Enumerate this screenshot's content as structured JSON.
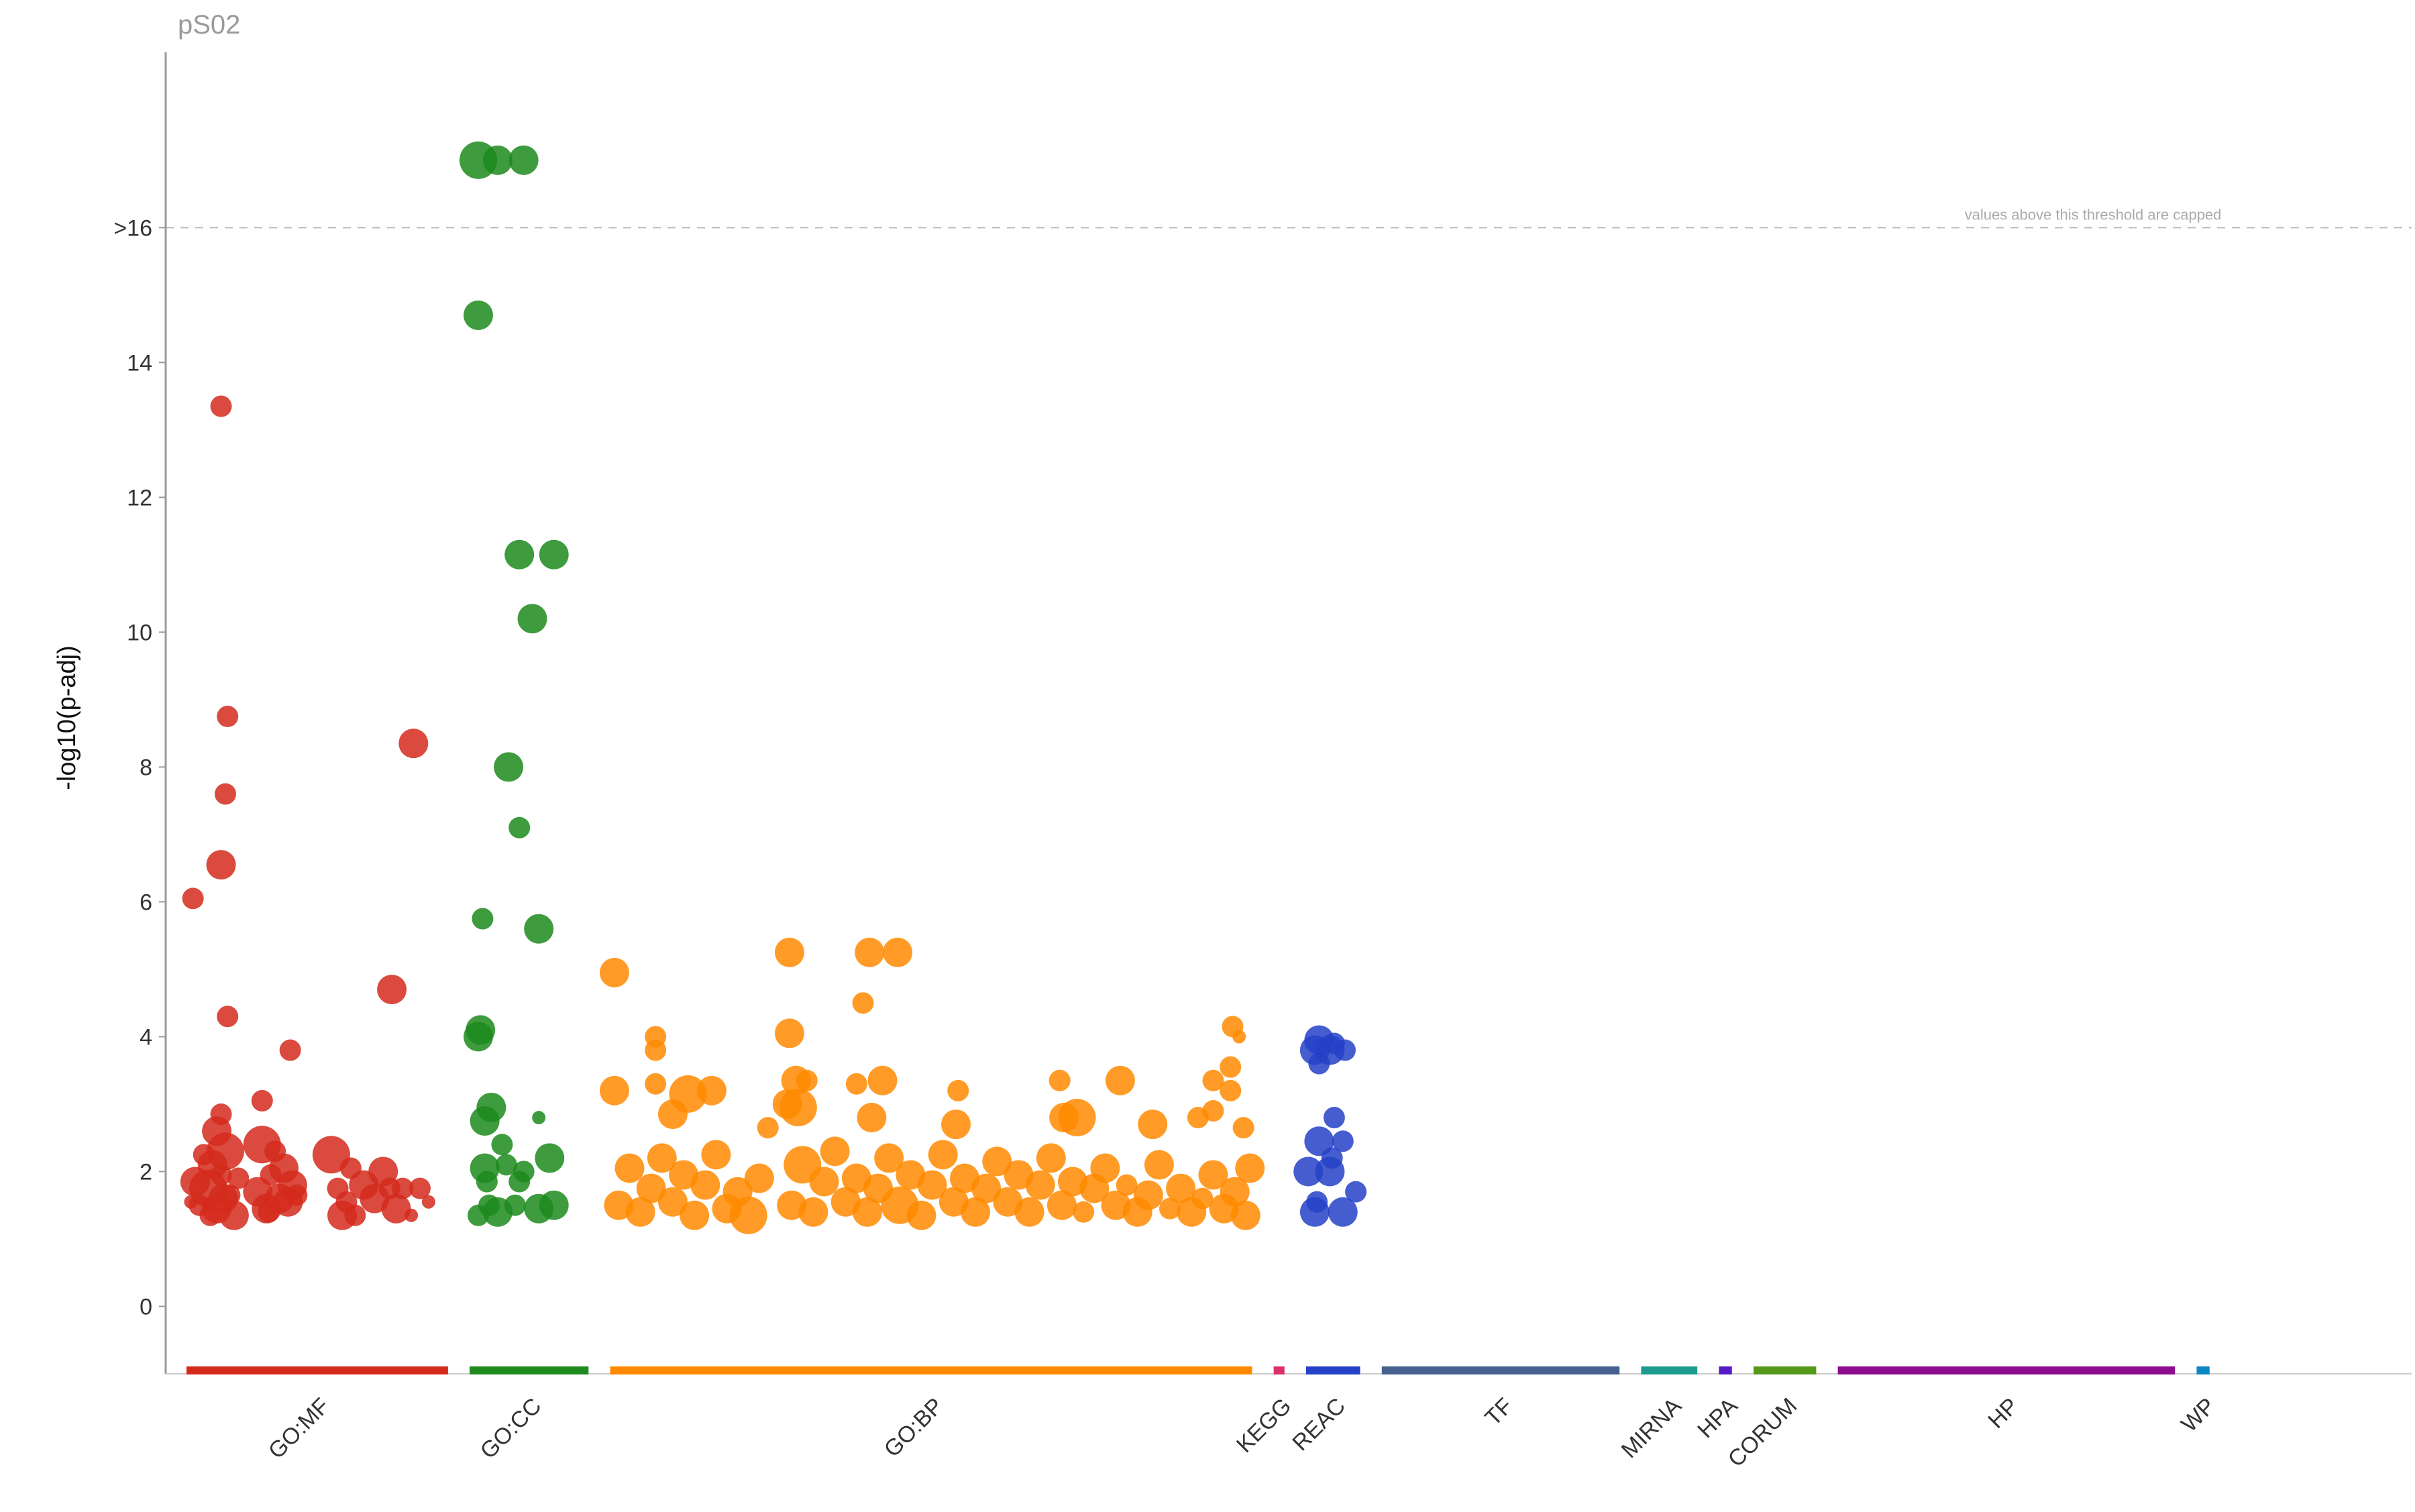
{
  "chart_data": {
    "type": "scatter",
    "title": "pS02",
    "ylabel": "-log10(p-adj)",
    "xlabel": "",
    "ylim": [
      -1,
      18.6
    ],
    "y_ticks": [
      0,
      2,
      4,
      6,
      8,
      10,
      12,
      14
    ],
    "threshold": {
      "value": 16,
      "label": ">16",
      "note": "values above this threshold are capped"
    },
    "sources": [
      {
        "name": "GO:MF",
        "color": "#d42a1c",
        "range": [
          0.0,
          0.121
        ]
      },
      {
        "name": "GO:CC",
        "color": "#1c8a1c",
        "range": [
          0.131,
          0.186
        ]
      },
      {
        "name": "GO:BP",
        "color": "#ff8a00",
        "range": [
          0.196,
          0.493
        ]
      },
      {
        "name": "KEGG",
        "color": "#dd2f6a",
        "range": [
          0.503,
          0.508
        ]
      },
      {
        "name": "REAC",
        "color": "#2541c7",
        "range": [
          0.518,
          0.543
        ]
      },
      {
        "name": "TF",
        "color": "#45618e",
        "range": [
          0.553,
          0.663
        ]
      },
      {
        "name": "MIRNA",
        "color": "#1c9c8e",
        "range": [
          0.673,
          0.699
        ]
      },
      {
        "name": "HPA",
        "color": "#5819c5",
        "range": [
          0.709,
          0.715
        ]
      },
      {
        "name": "CORUM",
        "color": "#55991c",
        "range": [
          0.725,
          0.754
        ]
      },
      {
        "name": "HP",
        "color": "#8e0b8e",
        "range": [
          0.764,
          0.92
        ]
      },
      {
        "name": "WP",
        "color": "#0b87c4",
        "range": [
          0.93,
          0.936
        ]
      }
    ],
    "series": [
      {
        "source": "GO:MF",
        "color": "#d42a1c",
        "points": [
          [
            0.003,
            6.05,
            2
          ],
          [
            0.016,
            13.35,
            2
          ],
          [
            0.019,
            8.75,
            2
          ],
          [
            0.018,
            7.6,
            2
          ],
          [
            0.016,
            6.55,
            3
          ],
          [
            0.019,
            4.3,
            2
          ],
          [
            0.048,
            3.8,
            2
          ],
          [
            0.105,
            8.35,
            3
          ],
          [
            0.095,
            4.7,
            3
          ],
          [
            0.035,
            3.05,
            2
          ],
          [
            0.016,
            2.85,
            2
          ],
          [
            0.014,
            2.6,
            3
          ],
          [
            0.002,
            1.55,
            1
          ],
          [
            0.004,
            1.85,
            3
          ],
          [
            0.006,
            1.5,
            2
          ],
          [
            0.008,
            2.25,
            2
          ],
          [
            0.01,
            1.75,
            4
          ],
          [
            0.012,
            2.1,
            3
          ],
          [
            0.014,
            1.45,
            3
          ],
          [
            0.016,
            1.95,
            2
          ],
          [
            0.018,
            2.3,
            4
          ],
          [
            0.02,
            1.65,
            2
          ],
          [
            0.022,
            1.35,
            3
          ],
          [
            0.024,
            1.9,
            2
          ],
          [
            0.011,
            1.35,
            2
          ],
          [
            0.017,
            1.6,
            3
          ],
          [
            0.033,
            1.7,
            3
          ],
          [
            0.035,
            2.4,
            4
          ],
          [
            0.037,
            1.45,
            3
          ],
          [
            0.039,
            1.95,
            2
          ],
          [
            0.041,
            2.3,
            2
          ],
          [
            0.043,
            1.6,
            3
          ],
          [
            0.045,
            2.05,
            3
          ],
          [
            0.047,
            1.55,
            3
          ],
          [
            0.049,
            1.8,
            3
          ],
          [
            0.051,
            1.65,
            2
          ],
          [
            0.038,
            1.4,
            2
          ],
          [
            0.067,
            2.25,
            4
          ],
          [
            0.07,
            1.75,
            2
          ],
          [
            0.072,
            1.35,
            3
          ],
          [
            0.074,
            1.55,
            2
          ],
          [
            0.076,
            2.05,
            2
          ],
          [
            0.078,
            1.35,
            2
          ],
          [
            0.082,
            1.8,
            3
          ],
          [
            0.087,
            1.6,
            3
          ],
          [
            0.091,
            2.0,
            3
          ],
          [
            0.094,
            1.75,
            2
          ],
          [
            0.097,
            1.45,
            3
          ],
          [
            0.1,
            1.75,
            2
          ],
          [
            0.104,
            1.35,
            1
          ],
          [
            0.108,
            1.75,
            2
          ],
          [
            0.112,
            1.55,
            1
          ]
        ]
      },
      {
        "source": "GO:CC",
        "color": "#1c8a1c",
        "points": [
          [
            0.135,
            17.0,
            4
          ],
          [
            0.144,
            17.0,
            3
          ],
          [
            0.156,
            17.0,
            3
          ],
          [
            0.135,
            14.7,
            3
          ],
          [
            0.154,
            11.15,
            3
          ],
          [
            0.17,
            11.15,
            3
          ],
          [
            0.16,
            10.2,
            3
          ],
          [
            0.149,
            8.0,
            3
          ],
          [
            0.154,
            7.1,
            2
          ],
          [
            0.137,
            5.75,
            2
          ],
          [
            0.163,
            5.6,
            3
          ],
          [
            0.136,
            4.1,
            3
          ],
          [
            0.135,
            4.0,
            3
          ],
          [
            0.141,
            2.95,
            3
          ],
          [
            0.138,
            2.75,
            3
          ],
          [
            0.146,
            2.4,
            2
          ],
          [
            0.148,
            2.1,
            2
          ],
          [
            0.138,
            2.05,
            3
          ],
          [
            0.139,
            1.85,
            2
          ],
          [
            0.14,
            1.5,
            2
          ],
          [
            0.135,
            1.35,
            2
          ],
          [
            0.144,
            1.4,
            3
          ],
          [
            0.152,
            1.5,
            2
          ],
          [
            0.154,
            1.85,
            2
          ],
          [
            0.156,
            2.0,
            2
          ],
          [
            0.163,
            2.8,
            1
          ],
          [
            0.168,
            2.2,
            3
          ],
          [
            0.17,
            1.5,
            3
          ],
          [
            0.163,
            1.45,
            3
          ]
        ]
      },
      {
        "source": "GO:BP",
        "color": "#ff8a00",
        "points": [
          [
            0.198,
            4.95,
            3
          ],
          [
            0.198,
            3.2,
            3
          ],
          [
            0.217,
            4.0,
            2
          ],
          [
            0.217,
            3.8,
            2
          ],
          [
            0.217,
            3.3,
            2
          ],
          [
            0.225,
            2.85,
            3
          ],
          [
            0.232,
            3.15,
            4
          ],
          [
            0.243,
            3.2,
            3
          ],
          [
            0.269,
            2.65,
            2
          ],
          [
            0.278,
            3.0,
            3
          ],
          [
            0.283,
            2.95,
            4
          ],
          [
            0.279,
            5.25,
            3
          ],
          [
            0.279,
            4.05,
            3
          ],
          [
            0.282,
            3.35,
            3
          ],
          [
            0.287,
            3.35,
            2
          ],
          [
            0.313,
            4.5,
            2
          ],
          [
            0.316,
            5.25,
            3
          ],
          [
            0.329,
            5.25,
            3
          ],
          [
            0.31,
            3.3,
            2
          ],
          [
            0.317,
            2.8,
            3
          ],
          [
            0.322,
            3.35,
            3
          ],
          [
            0.357,
            3.2,
            2
          ],
          [
            0.356,
            2.7,
            3
          ],
          [
            0.404,
            3.35,
            2
          ],
          [
            0.406,
            2.8,
            3
          ],
          [
            0.412,
            2.8,
            4
          ],
          [
            0.432,
            3.35,
            3
          ],
          [
            0.447,
            2.7,
            3
          ],
          [
            0.475,
            3.35,
            2
          ],
          [
            0.475,
            2.9,
            2
          ],
          [
            0.468,
            2.8,
            2
          ],
          [
            0.483,
            3.2,
            2
          ],
          [
            0.483,
            3.55,
            2
          ],
          [
            0.487,
            4.0,
            1
          ],
          [
            0.484,
            4.15,
            2
          ],
          [
            0.489,
            2.65,
            2
          ],
          [
            0.2,
            1.5,
            3
          ],
          [
            0.205,
            2.05,
            3
          ],
          [
            0.21,
            1.4,
            3
          ],
          [
            0.215,
            1.75,
            3
          ],
          [
            0.22,
            2.2,
            3
          ],
          [
            0.225,
            1.55,
            3
          ],
          [
            0.23,
            1.95,
            3
          ],
          [
            0.235,
            1.35,
            3
          ],
          [
            0.24,
            1.8,
            3
          ],
          [
            0.245,
            2.25,
            3
          ],
          [
            0.25,
            1.45,
            3
          ],
          [
            0.255,
            1.7,
            3
          ],
          [
            0.26,
            1.35,
            4
          ],
          [
            0.265,
            1.9,
            3
          ],
          [
            0.28,
            1.5,
            3
          ],
          [
            0.285,
            2.1,
            4
          ],
          [
            0.29,
            1.4,
            3
          ],
          [
            0.295,
            1.85,
            3
          ],
          [
            0.3,
            2.3,
            3
          ],
          [
            0.305,
            1.55,
            3
          ],
          [
            0.31,
            1.9,
            3
          ],
          [
            0.315,
            1.4,
            3
          ],
          [
            0.32,
            1.75,
            3
          ],
          [
            0.325,
            2.2,
            3
          ],
          [
            0.33,
            1.5,
            4
          ],
          [
            0.335,
            1.95,
            3
          ],
          [
            0.34,
            1.35,
            3
          ],
          [
            0.345,
            1.8,
            3
          ],
          [
            0.35,
            2.25,
            3
          ],
          [
            0.355,
            1.55,
            3
          ],
          [
            0.36,
            1.9,
            3
          ],
          [
            0.365,
            1.4,
            3
          ],
          [
            0.37,
            1.75,
            3
          ],
          [
            0.375,
            2.15,
            3
          ],
          [
            0.38,
            1.55,
            3
          ],
          [
            0.385,
            1.95,
            3
          ],
          [
            0.39,
            1.4,
            3
          ],
          [
            0.395,
            1.8,
            3
          ],
          [
            0.4,
            2.2,
            3
          ],
          [
            0.405,
            1.5,
            3
          ],
          [
            0.41,
            1.85,
            3
          ],
          [
            0.415,
            1.4,
            2
          ],
          [
            0.42,
            1.75,
            3
          ],
          [
            0.425,
            2.05,
            3
          ],
          [
            0.43,
            1.5,
            3
          ],
          [
            0.435,
            1.8,
            2
          ],
          [
            0.44,
            1.4,
            3
          ],
          [
            0.445,
            1.65,
            3
          ],
          [
            0.45,
            2.1,
            3
          ],
          [
            0.455,
            1.45,
            2
          ],
          [
            0.46,
            1.75,
            3
          ],
          [
            0.465,
            1.4,
            3
          ],
          [
            0.47,
            1.6,
            2
          ],
          [
            0.475,
            1.95,
            3
          ],
          [
            0.48,
            1.45,
            3
          ],
          [
            0.485,
            1.7,
            3
          ],
          [
            0.49,
            1.35,
            3
          ],
          [
            0.492,
            2.05,
            3
          ]
        ]
      },
      {
        "source": "REAC",
        "color": "#2541c7",
        "points": [
          [
            0.522,
            3.8,
            3
          ],
          [
            0.524,
            3.95,
            3
          ],
          [
            0.529,
            3.8,
            3
          ],
          [
            0.531,
            3.9,
            2
          ],
          [
            0.536,
            3.8,
            2
          ],
          [
            0.524,
            3.6,
            2
          ],
          [
            0.531,
            2.8,
            2
          ],
          [
            0.524,
            2.45,
            3
          ],
          [
            0.535,
            2.45,
            2
          ],
          [
            0.53,
            2.2,
            2
          ],
          [
            0.519,
            2.0,
            3
          ],
          [
            0.529,
            2.0,
            3
          ],
          [
            0.541,
            1.7,
            2
          ],
          [
            0.523,
            1.55,
            2
          ],
          [
            0.522,
            1.4,
            3
          ],
          [
            0.535,
            1.4,
            3
          ]
        ]
      }
    ]
  }
}
